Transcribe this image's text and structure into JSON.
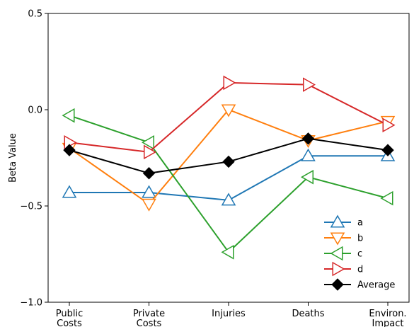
{
  "chart_data": {
    "type": "line",
    "categories": [
      "Public\nCosts",
      "Private\nCosts",
      "Injuries",
      "Deaths",
      "Environ.\nImpact"
    ],
    "ylabel": "Beta Value",
    "ylim": [
      -1.0,
      0.5
    ],
    "yticks": [
      -1.0,
      -0.5,
      0.0,
      0.5
    ],
    "ytick_labels": [
      "−1.0",
      "−0.5",
      "0.0",
      "0.5"
    ],
    "grid": false,
    "legend_position": "lower-right",
    "series": [
      {
        "name": "a",
        "color": "#1f77b4",
        "marker": "triangle-up",
        "values": [
          -0.43,
          -0.43,
          -0.47,
          -0.24,
          -0.24
        ]
      },
      {
        "name": "b",
        "color": "#ff7f0e",
        "marker": "triangle-down",
        "values": [
          -0.2,
          -0.49,
          0.0,
          -0.16,
          -0.06
        ]
      },
      {
        "name": "c",
        "color": "#2ca02c",
        "marker": "triangle-left",
        "values": [
          -0.03,
          -0.17,
          -0.74,
          -0.35,
          -0.46
        ]
      },
      {
        "name": "d",
        "color": "#d62728",
        "marker": "triangle-right",
        "values": [
          -0.17,
          -0.22,
          0.14,
          0.13,
          -0.08
        ]
      },
      {
        "name": "Average",
        "color": "#000000",
        "marker": "diamond",
        "values": [
          -0.21,
          -0.33,
          -0.27,
          -0.15,
          -0.21
        ]
      }
    ]
  }
}
